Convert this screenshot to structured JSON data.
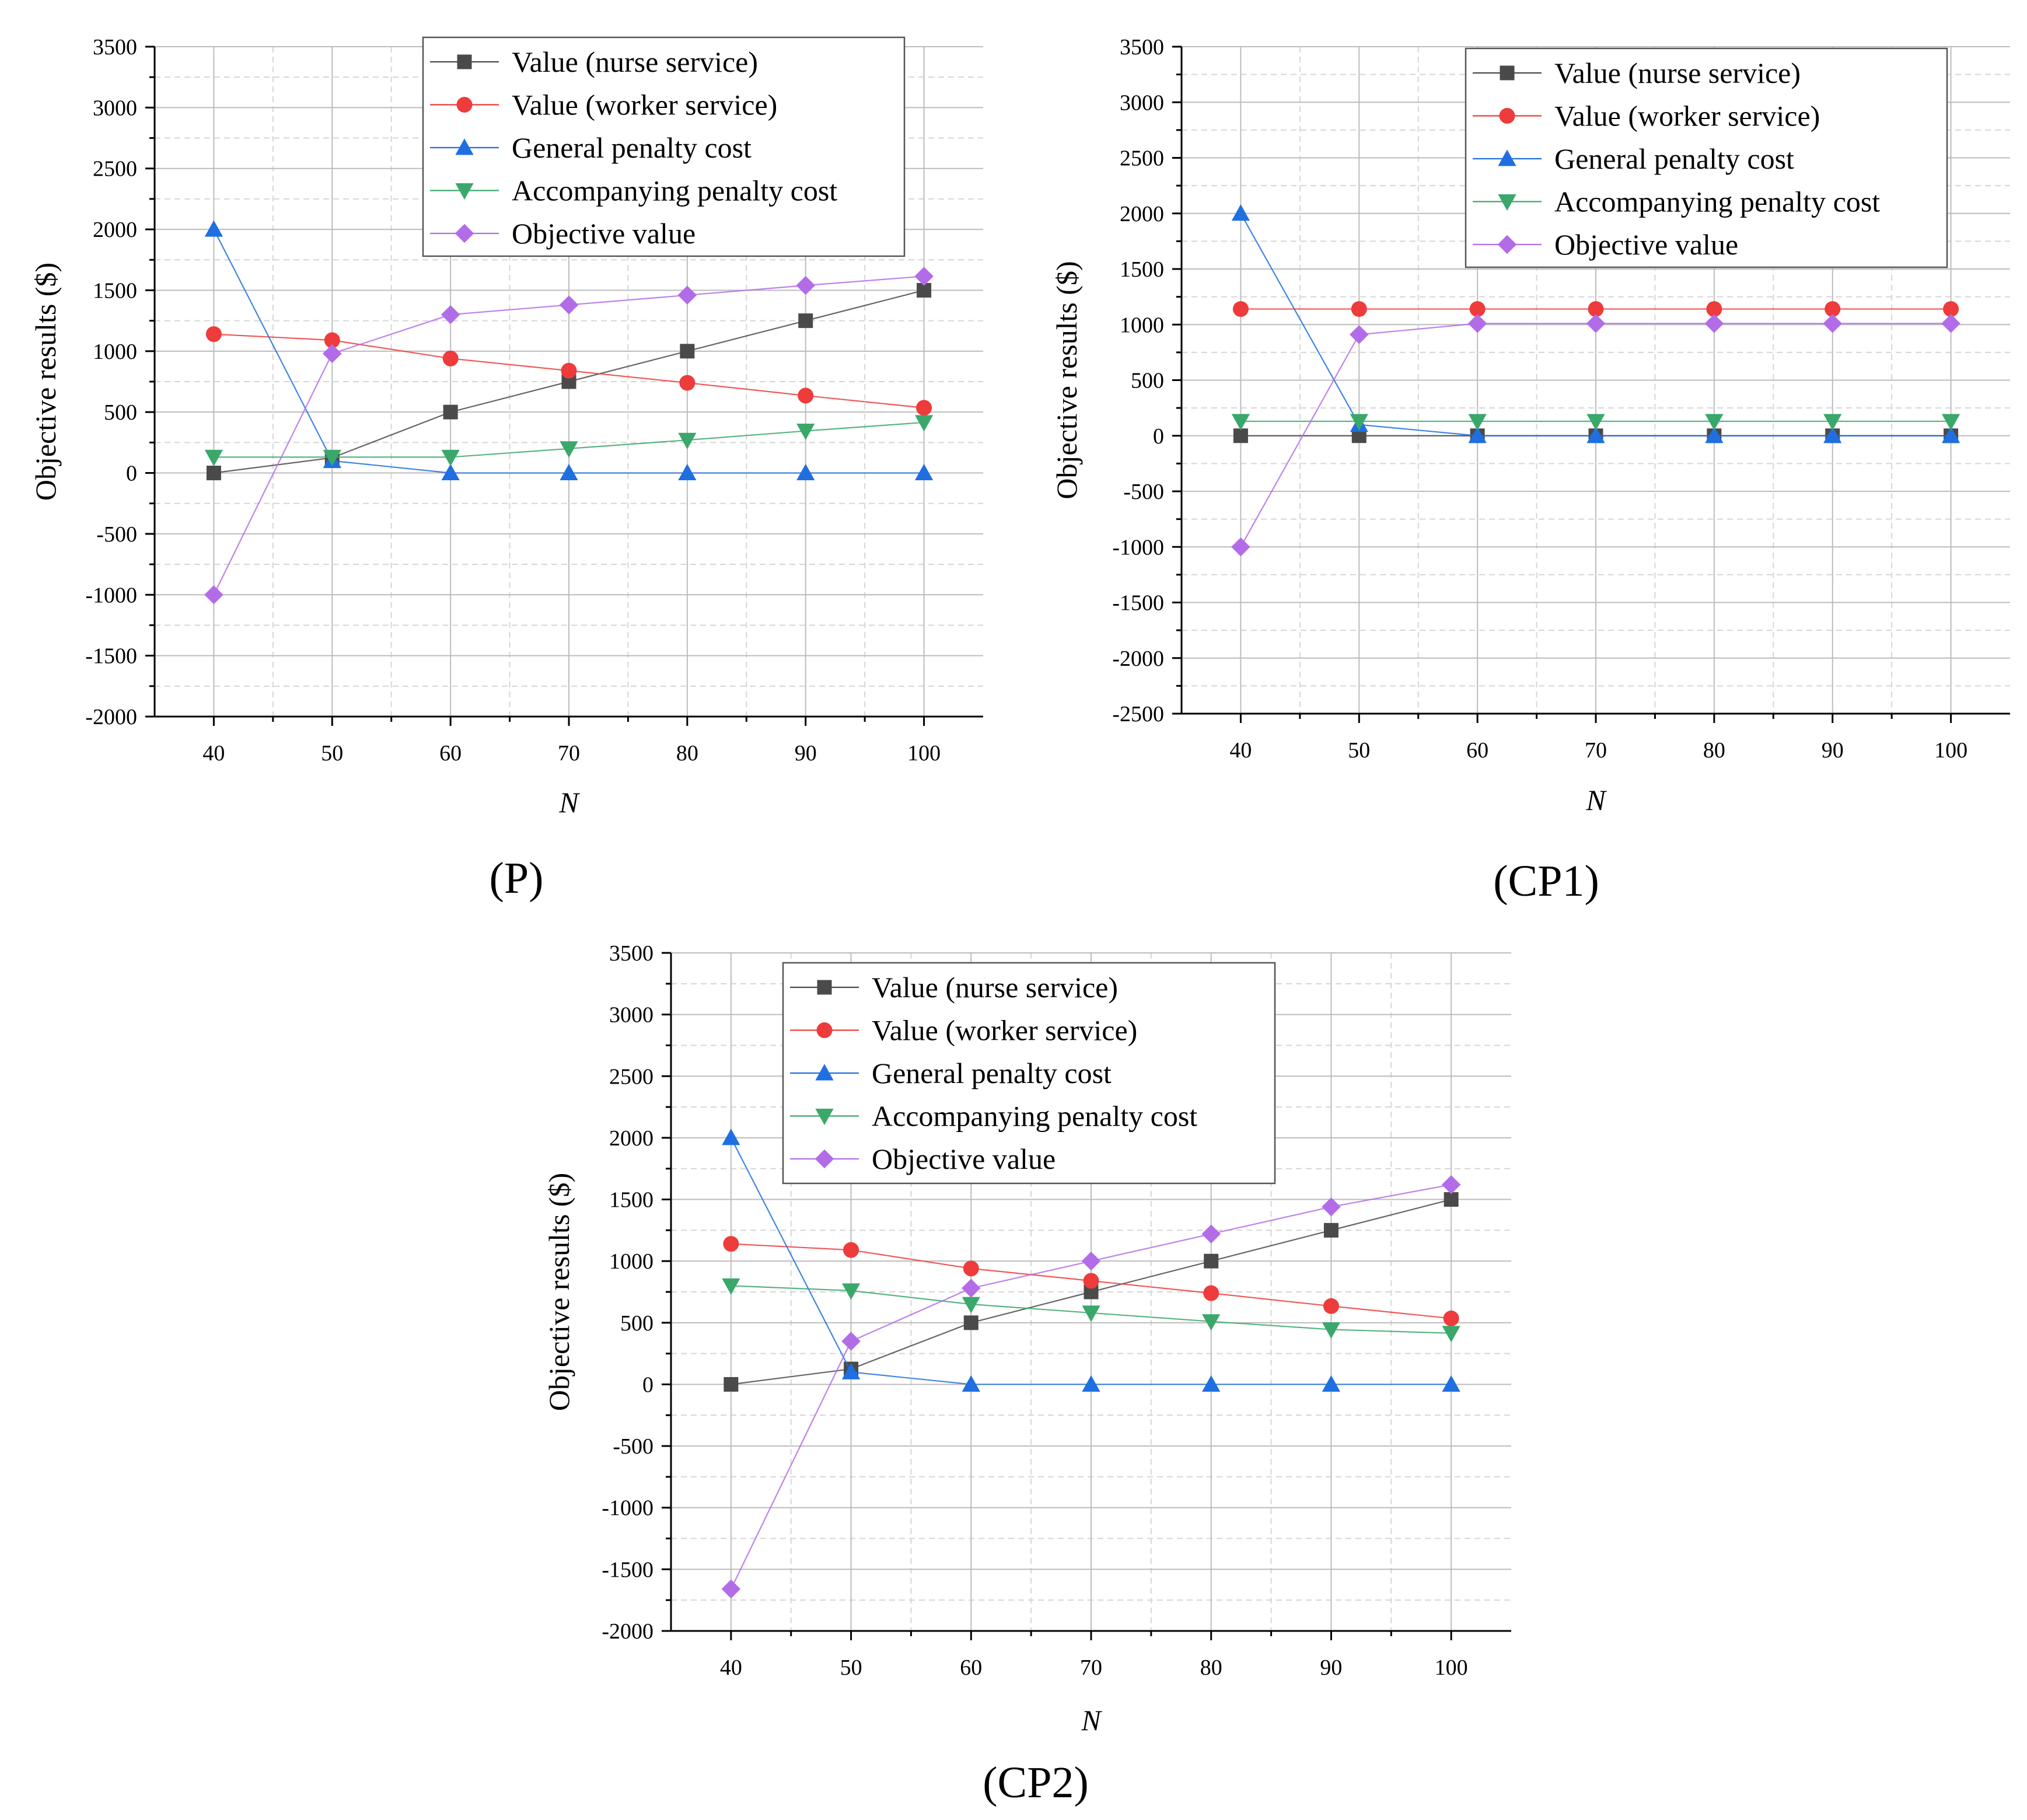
{
  "series_styles": [
    {
      "key": "nurse",
      "color": "#4a4a4a",
      "marker": "square"
    },
    {
      "key": "worker",
      "color": "#ee3b3b",
      "marker": "circle"
    },
    {
      "key": "general",
      "color": "#1f6fe0",
      "marker": "triangle-up"
    },
    {
      "key": "accompanying",
      "color": "#3aa86b",
      "marker": "triangle-down"
    },
    {
      "key": "objective",
      "color": "#b36ce8",
      "marker": "diamond"
    }
  ],
  "chart_data": [
    {
      "type": "line",
      "panel_label": "(P)",
      "xlabel": "N",
      "ylabel": "Objective results ($)",
      "x": [
        40,
        50,
        60,
        70,
        80,
        90,
        100
      ],
      "x_tick_labels": [
        "40",
        "50",
        "60",
        "70",
        "80",
        "90",
        "100"
      ],
      "xlim": [
        35,
        105
      ],
      "ylim": [
        -2000,
        3500
      ],
      "y_ticks": [
        -2000,
        -1500,
        -1000,
        -500,
        0,
        500,
        1000,
        1500,
        2000,
        2500,
        3000,
        3500
      ],
      "y_tick_labels": [
        "-2000",
        "-1500",
        "-1000",
        "-500",
        "0",
        "500",
        "1000",
        "1500",
        "2000",
        "2500",
        "3000",
        "3500"
      ],
      "legend_position": "top-right",
      "series": [
        {
          "name": "Value (nurse service)",
          "values": [
            0,
            125,
            500,
            750,
            1000,
            1250,
            1500
          ]
        },
        {
          "name": "Value (worker service)",
          "values": [
            1140,
            1090,
            940,
            840,
            740,
            635,
            535
          ]
        },
        {
          "name": "General penalty cost",
          "values": [
            2000,
            100,
            0,
            0,
            0,
            0,
            0
          ]
        },
        {
          "name": "Accompanying penalty cost",
          "values": [
            130,
            130,
            130,
            200,
            270,
            345,
            415
          ]
        },
        {
          "name": "Objective value",
          "values": [
            -1000,
            980,
            1300,
            1380,
            1460,
            1540,
            1615
          ]
        }
      ]
    },
    {
      "type": "line",
      "panel_label": "(CP1)",
      "xlabel": "N",
      "ylabel": "Objective results ($)",
      "x": [
        40,
        50,
        60,
        70,
        80,
        90,
        100
      ],
      "x_tick_labels": [
        "40",
        "50",
        "60",
        "70",
        "80",
        "90",
        "100"
      ],
      "xlim": [
        35,
        105
      ],
      "ylim": [
        -2500,
        3500
      ],
      "y_ticks": [
        -2500,
        -2000,
        -1500,
        -1000,
        -500,
        0,
        500,
        1000,
        1500,
        2000,
        2500,
        3000,
        3500
      ],
      "y_tick_labels": [
        "-2500",
        "-2000",
        "-1500",
        "-1000",
        "-500",
        "0",
        "500",
        "1000",
        "1500",
        "2000",
        "2500",
        "3000",
        "3500"
      ],
      "legend_position": "top-right",
      "series": [
        {
          "name": "Value (nurse service)",
          "values": [
            0,
            0,
            0,
            0,
            0,
            0,
            0
          ]
        },
        {
          "name": "Value (worker service)",
          "values": [
            1140,
            1140,
            1140,
            1140,
            1140,
            1140,
            1140
          ]
        },
        {
          "name": "General penalty cost",
          "values": [
            2000,
            100,
            0,
            0,
            0,
            0,
            0
          ]
        },
        {
          "name": "Accompanying penalty cost",
          "values": [
            130,
            130,
            130,
            130,
            130,
            130,
            130
          ]
        },
        {
          "name": "Objective value",
          "values": [
            -1000,
            910,
            1010,
            1010,
            1010,
            1010,
            1010
          ]
        }
      ]
    },
    {
      "type": "line",
      "panel_label": "(CP2)",
      "xlabel": "N",
      "ylabel": "Objective results ($)",
      "x": [
        40,
        50,
        60,
        70,
        80,
        90,
        100
      ],
      "x_tick_labels": [
        "40",
        "50",
        "60",
        "70",
        "80",
        "90",
        "100"
      ],
      "xlim": [
        35,
        105
      ],
      "ylim": [
        -2000,
        3500
      ],
      "y_ticks": [
        -2000,
        -1500,
        -1000,
        -500,
        0,
        500,
        1000,
        1500,
        2000,
        2500,
        3000,
        3500
      ],
      "y_tick_labels": [
        "-2000",
        "-1500",
        "-1000",
        "-500",
        "0",
        "500",
        "1000",
        "1500",
        "2000",
        "2500",
        "3000",
        "3500"
      ],
      "legend_position": "top-right",
      "series": [
        {
          "name": "Value (nurse service)",
          "values": [
            0,
            125,
            500,
            750,
            1000,
            1250,
            1500
          ]
        },
        {
          "name": "Value (worker service)",
          "values": [
            1140,
            1090,
            940,
            840,
            740,
            635,
            535
          ]
        },
        {
          "name": "General penalty cost",
          "values": [
            2000,
            100,
            0,
            0,
            0,
            0,
            0
          ]
        },
        {
          "name": "Accompanying penalty cost",
          "values": [
            800,
            760,
            650,
            580,
            510,
            445,
            415
          ]
        },
        {
          "name": "Objective value",
          "values": [
            -1660,
            350,
            780,
            1000,
            1220,
            1440,
            1620
          ]
        }
      ]
    }
  ]
}
